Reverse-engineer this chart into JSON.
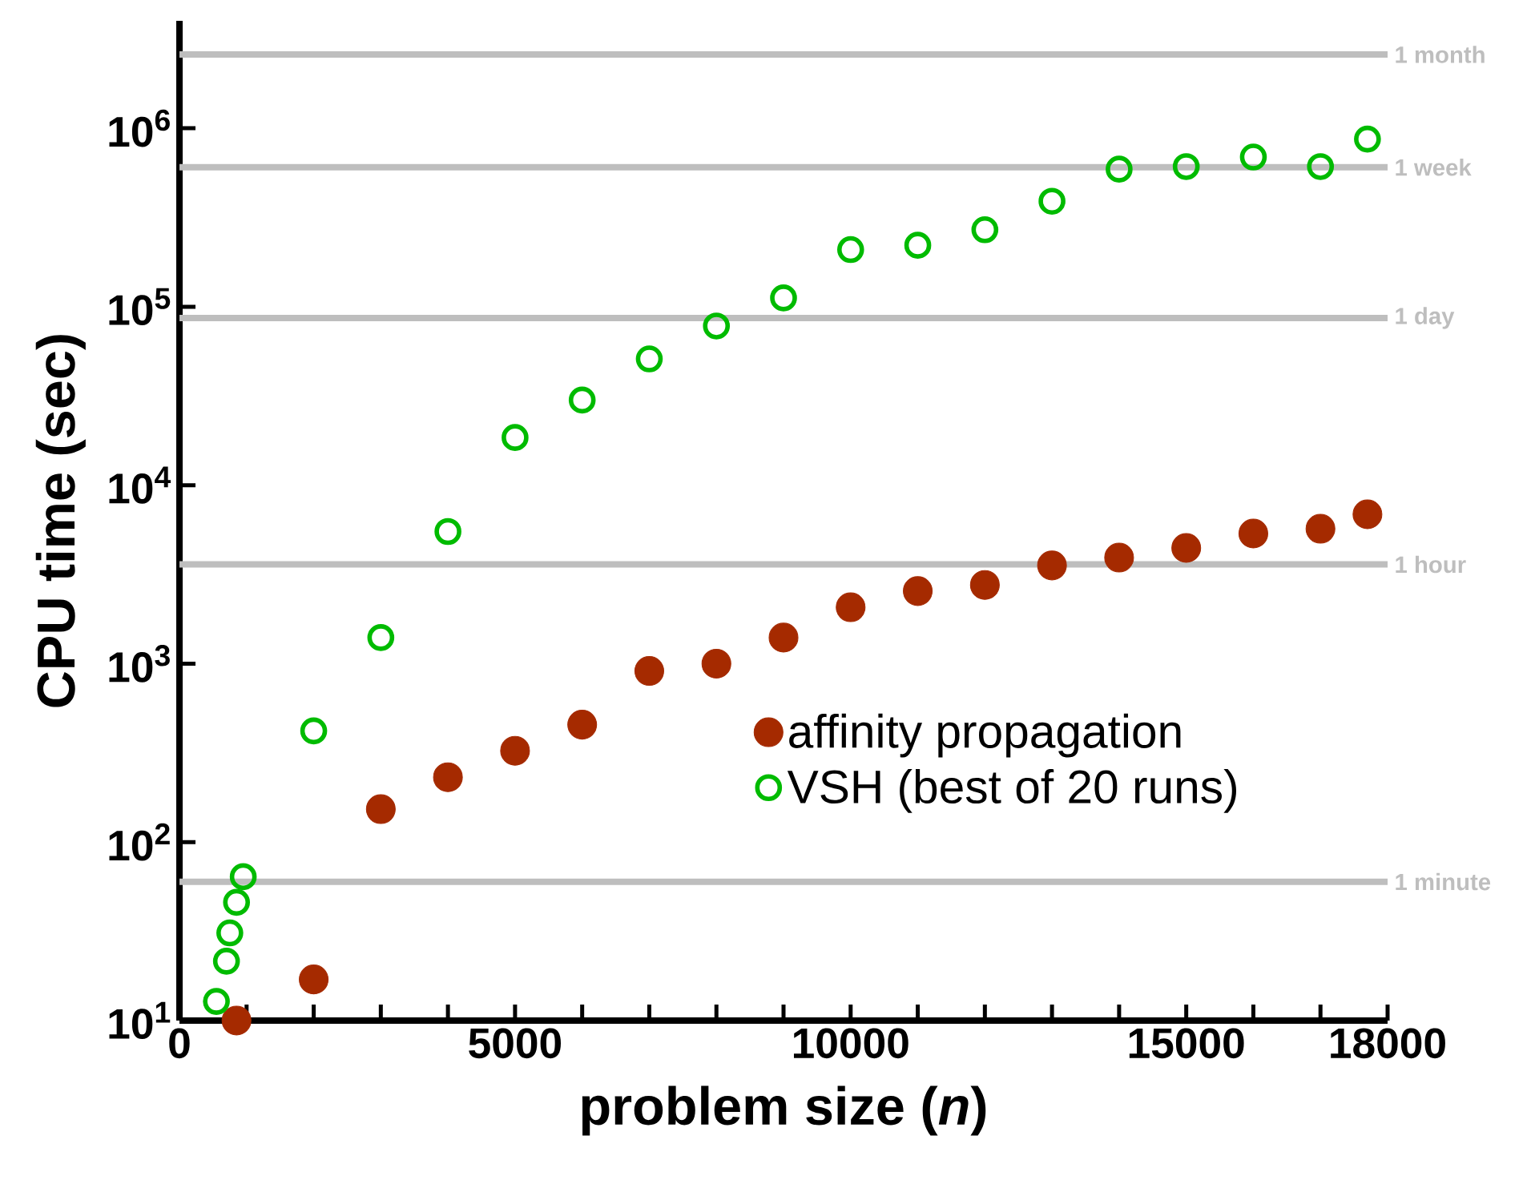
{
  "chart_data": {
    "type": "scatter",
    "xlabel": "problem size (*n*)",
    "ylabel": "CPU time (sec)",
    "log": "y",
    "marker": "circle",
    "legend": "bottom right",
    "grid": false,
    "xlim": [
      0,
      18000
    ],
    "ylim": [
      10,
      4000000
    ],
    "xticks": [
      0,
      {
        "value": 1000,
        "label": null
      },
      {
        "value": 2000,
        "label": null
      },
      {
        "value": 3000,
        "label": null
      },
      {
        "value": 4000,
        "label": null
      },
      5000,
      {
        "value": 6000,
        "label": null
      },
      {
        "value": 7000,
        "label": null
      },
      {
        "value": 8000,
        "label": null
      },
      {
        "value": 9000,
        "label": null
      },
      10000,
      {
        "value": 11000,
        "label": null
      },
      {
        "value": 12000,
        "label": null
      },
      {
        "value": 13000,
        "label": null
      },
      {
        "value": 14000,
        "label": null
      },
      15000,
      {
        "value": 16000,
        "label": null
      },
      {
        "value": 17000,
        "label": null
      },
      18000
    ],
    "yticks": [
      {
        "value": 10,
        "label": "10$^{1}$"
      },
      {
        "value": 100,
        "label": "10$^{2}$"
      },
      {
        "value": 1000,
        "label": "10$^{3}$"
      },
      {
        "value": 10000,
        "label": "10$^{4}$"
      },
      {
        "value": 100000,
        "label": "10$^{5}$"
      },
      {
        "value": 1000000,
        "label": "10$^{6}$"
      }
    ],
    "series": [
      {
        "name": "affinity propagation",
        "color": "#a52a00",
        "x": [
          850,
          2000,
          3000,
          4000,
          5000,
          6000,
          7000,
          8000,
          9000,
          10000,
          11000,
          12000,
          13000,
          14000,
          15000,
          16000,
          17000,
          17700
        ],
        "values": [
          10,
          17,
          153,
          231,
          325,
          455,
          910,
          1000,
          1400,
          2070,
          2550,
          2760,
          3550,
          3930,
          4450,
          5360,
          5700,
          6870
        ]
      },
      {
        "name": "VSH (best of 20 runs)",
        "color": "#00bb00",
        "x": [
          550,
          700,
          750,
          850,
          950,
          2000,
          3000,
          4000,
          5000,
          6000,
          7000,
          8000,
          9000,
          10000,
          11000,
          12000,
          13000,
          14000,
          15000,
          16000,
          17000,
          17700
        ],
        "values": [
          12.8,
          21.5,
          31,
          46,
          64,
          420,
          1400,
          5500,
          18500,
          30000,
          51000,
          78000,
          112000,
          209000,
          221000,
          270000,
          390000,
          590000,
          610000,
          690000,
          610000,
          870000
        ]
      }
    ],
    "ref_lines": [
      {
        "axis": "y",
        "value": 60,
        "label": "1 minute",
        "color": "#bebebe"
      },
      {
        "axis": "y",
        "value": 3600,
        "label": "1 hour",
        "color": "#bebebe"
      },
      {
        "axis": "y",
        "value": 86400,
        "label": "1 day",
        "color": "#bebebe"
      },
      {
        "axis": "y",
        "value": 604800,
        "label": "1 week",
        "color": "#bebebe"
      },
      {
        "axis": "y",
        "value": 2592000,
        "label": "1 month",
        "color": "#bebebe"
      }
    ]
  }
}
